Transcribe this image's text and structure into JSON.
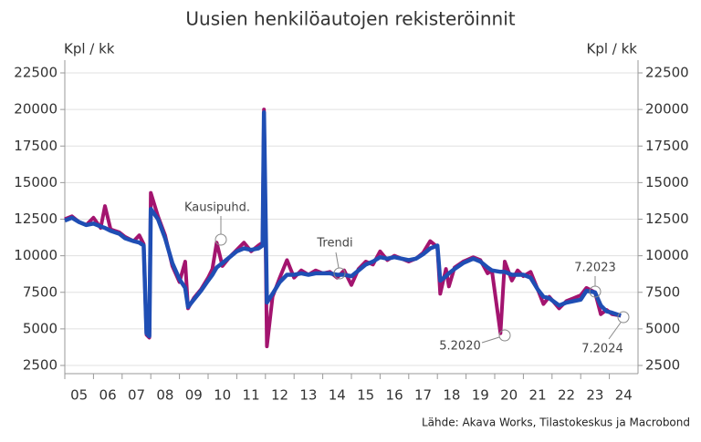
{
  "chart_data": {
    "type": "line",
    "title": "Uusien henkilöautojen rekisteröinnit",
    "y_label": "Kpl / kk",
    "y2_label": "Kpl / kk",
    "source": "Lähde: Akava Works, Tilastokeskus ja Macrobond",
    "xlim": [
      5,
      25
    ],
    "xticks": [
      {
        "value": 5.5,
        "label": "05"
      },
      {
        "value": 6.5,
        "label": "06"
      },
      {
        "value": 7.5,
        "label": "07"
      },
      {
        "value": 8.5,
        "label": "08"
      },
      {
        "value": 9.5,
        "label": "09"
      },
      {
        "value": 10.5,
        "label": "10"
      },
      {
        "value": 11.5,
        "label": "11"
      },
      {
        "value": 12.5,
        "label": "12"
      },
      {
        "value": 13.5,
        "label": "13"
      },
      {
        "value": 14.5,
        "label": "14"
      },
      {
        "value": 15.5,
        "label": "15"
      },
      {
        "value": 16.5,
        "label": "16"
      },
      {
        "value": 17.5,
        "label": "17"
      },
      {
        "value": 18.5,
        "label": "18"
      },
      {
        "value": 19.5,
        "label": "19"
      },
      {
        "value": 20.5,
        "label": "20"
      },
      {
        "value": 21.5,
        "label": "21"
      },
      {
        "value": 22.5,
        "label": "22"
      },
      {
        "value": 23.5,
        "label": "23"
      },
      {
        "value": 24.5,
        "label": "24"
      }
    ],
    "ylim": [
      2500,
      22500
    ],
    "yticks": [
      2500,
      5000,
      7500,
      10000,
      12500,
      15000,
      17500,
      20000,
      22500
    ],
    "grid": true,
    "x": [
      5.0,
      5.25,
      5.5,
      5.75,
      6.0,
      6.25,
      6.4,
      6.6,
      6.9,
      7.1,
      7.4,
      7.6,
      7.75,
      7.85,
      7.95,
      8.0,
      8.25,
      8.5,
      8.75,
      9.0,
      9.2,
      9.3,
      9.5,
      9.75,
      10.0,
      10.15,
      10.3,
      10.5,
      10.75,
      11.0,
      11.25,
      11.5,
      11.75,
      11.9,
      11.95,
      12.05,
      12.25,
      12.5,
      12.75,
      13.0,
      13.25,
      13.5,
      13.75,
      14.0,
      14.25,
      14.5,
      14.75,
      15.0,
      15.25,
      15.5,
      15.75,
      16.0,
      16.25,
      16.5,
      16.75,
      17.0,
      17.25,
      17.5,
      17.75,
      18.0,
      18.1,
      18.3,
      18.4,
      18.6,
      18.9,
      19.25,
      19.5,
      19.75,
      19.9,
      20.2,
      20.35,
      20.6,
      20.8,
      21.0,
      21.25,
      21.5,
      21.7,
      21.9,
      22.25,
      22.5,
      22.75,
      23.0,
      23.2,
      23.5,
      23.7,
      23.9,
      24.1,
      24.4
    ],
    "series": [
      {
        "name": "Kausipuhd.",
        "color": "#a3146f",
        "values": [
          12500,
          12700,
          12300,
          12100,
          12600,
          11900,
          13400,
          11800,
          11600,
          11300,
          11000,
          11400,
          10800,
          4600,
          4400,
          14300,
          12700,
          11400,
          9300,
          8200,
          9600,
          6400,
          7100,
          7700,
          8500,
          9100,
          10900,
          9300,
          9900,
          10400,
          10900,
          10300,
          10700,
          10900,
          20000,
          3800,
          7200,
          8500,
          9700,
          8500,
          9000,
          8700,
          9000,
          8800,
          8900,
          8500,
          9000,
          8000,
          9100,
          9600,
          9400,
          10300,
          9700,
          10000,
          9800,
          9600,
          9800,
          10200,
          11000,
          10600,
          7400,
          9100,
          7900,
          9200,
          9600,
          9900,
          9700,
          8800,
          9000,
          4700,
          9600,
          8300,
          9000,
          8600,
          8900,
          7700,
          6700,
          7200,
          6400,
          6900,
          7100,
          7300,
          7800,
          7500,
          6000,
          6300,
          6000,
          5900
        ]
      },
      {
        "name": "Trendi",
        "color": "#1f4eb4",
        "values": [
          12400,
          12600,
          12300,
          12100,
          12200,
          12000,
          11900,
          11700,
          11500,
          11200,
          11000,
          10900,
          10700,
          4700,
          4500,
          13200,
          12500,
          11200,
          9500,
          8400,
          7800,
          6500,
          7000,
          7600,
          8300,
          8700,
          9200,
          9500,
          9900,
          10300,
          10500,
          10400,
          10500,
          10700,
          19800,
          6800,
          7400,
          8200,
          8700,
          8700,
          8800,
          8700,
          8800,
          8800,
          8800,
          8700,
          8700,
          8600,
          9000,
          9400,
          9600,
          9900,
          9800,
          9900,
          9800,
          9700,
          9800,
          10100,
          10500,
          10700,
          8300,
          8600,
          8800,
          9100,
          9500,
          9800,
          9600,
          9200,
          9000,
          8900,
          8900,
          8700,
          8700,
          8700,
          8500,
          7700,
          7200,
          7100,
          6600,
          6800,
          6900,
          7000,
          7600,
          7500,
          6600,
          6200,
          6100,
          5900
        ]
      }
    ],
    "annotations": [
      "Kausipuhd.",
      "Trendi",
      "5.2020",
      "7.2023",
      "7.2024"
    ]
  }
}
